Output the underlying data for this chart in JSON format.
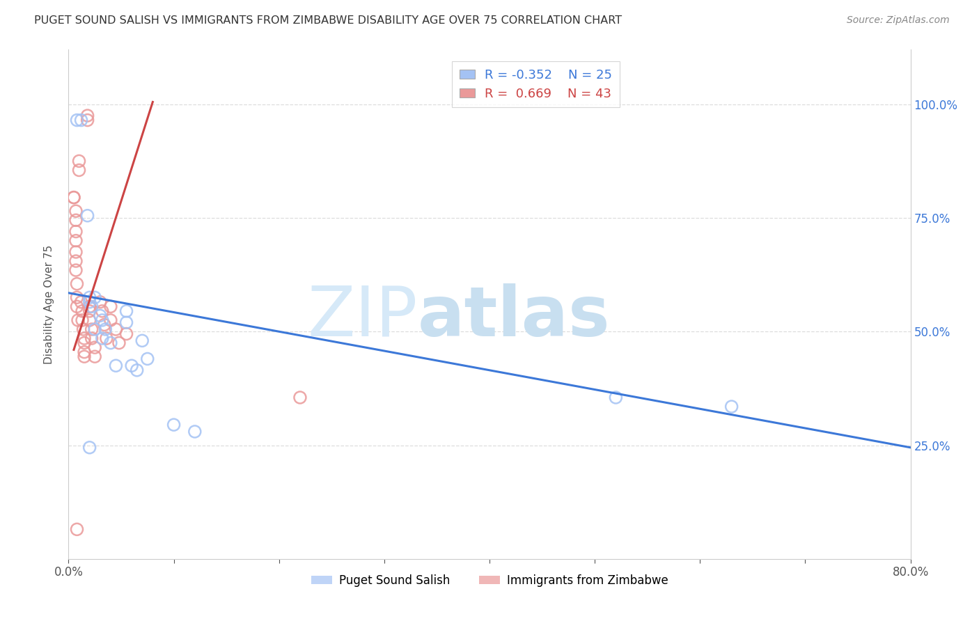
{
  "title": "PUGET SOUND SALISH VS IMMIGRANTS FROM ZIMBABWE DISABILITY AGE OVER 75 CORRELATION CHART",
  "source": "Source: ZipAtlas.com",
  "ylabel": "Disability Age Over 75",
  "ytick_labels": [
    "25.0%",
    "50.0%",
    "75.0%",
    "100.0%"
  ],
  "ytick_values": [
    0.25,
    0.5,
    0.75,
    1.0
  ],
  "xlim": [
    0.0,
    0.8
  ],
  "ylim": [
    0.0,
    1.12
  ],
  "blue_R": -0.352,
  "blue_N": 25,
  "pink_R": 0.669,
  "pink_N": 43,
  "blue_label": "Puget Sound Salish",
  "pink_label": "Immigrants from Zimbabwe",
  "blue_color": "#a4c2f4",
  "pink_color": "#ea9999",
  "blue_line_color": "#3c78d8",
  "pink_line_color": "#cc4444",
  "watermark_zip": "ZIP",
  "watermark_atlas": "atlas",
  "watermark_color": "#d6e9f8",
  "blue_scatter_x": [
    0.008,
    0.012,
    0.018,
    0.02,
    0.022,
    0.025,
    0.025,
    0.03,
    0.032,
    0.032,
    0.035,
    0.04,
    0.045,
    0.055,
    0.055,
    0.06,
    0.065,
    0.07,
    0.075,
    0.1,
    0.12,
    0.52,
    0.63,
    0.02,
    0.02
  ],
  "blue_scatter_y": [
    0.965,
    0.965,
    0.755,
    0.565,
    0.555,
    0.575,
    0.505,
    0.535,
    0.525,
    0.485,
    0.505,
    0.475,
    0.425,
    0.52,
    0.545,
    0.425,
    0.415,
    0.48,
    0.44,
    0.295,
    0.28,
    0.355,
    0.335,
    0.245,
    0.575
  ],
  "pink_scatter_x": [
    0.005,
    0.005,
    0.007,
    0.007,
    0.007,
    0.007,
    0.007,
    0.007,
    0.007,
    0.008,
    0.008,
    0.008,
    0.009,
    0.01,
    0.01,
    0.012,
    0.013,
    0.013,
    0.014,
    0.015,
    0.015,
    0.015,
    0.015,
    0.018,
    0.018,
    0.02,
    0.02,
    0.02,
    0.022,
    0.022,
    0.025,
    0.025,
    0.03,
    0.032,
    0.034,
    0.036,
    0.04,
    0.04,
    0.045,
    0.048,
    0.055,
    0.22,
    0.008
  ],
  "pink_scatter_y": [
    0.795,
    0.795,
    0.765,
    0.745,
    0.72,
    0.7,
    0.675,
    0.655,
    0.635,
    0.605,
    0.575,
    0.555,
    0.525,
    0.875,
    0.855,
    0.565,
    0.545,
    0.525,
    0.505,
    0.485,
    0.475,
    0.455,
    0.445,
    0.975,
    0.965,
    0.555,
    0.545,
    0.525,
    0.505,
    0.485,
    0.465,
    0.445,
    0.565,
    0.545,
    0.515,
    0.485,
    0.555,
    0.525,
    0.505,
    0.475,
    0.495,
    0.355,
    0.065
  ],
  "blue_trendline_x": [
    0.0,
    0.8
  ],
  "blue_trendline_y": [
    0.585,
    0.245
  ],
  "pink_trendline_x": [
    0.005,
    0.08
  ],
  "pink_trendline_y": [
    0.46,
    1.005
  ]
}
